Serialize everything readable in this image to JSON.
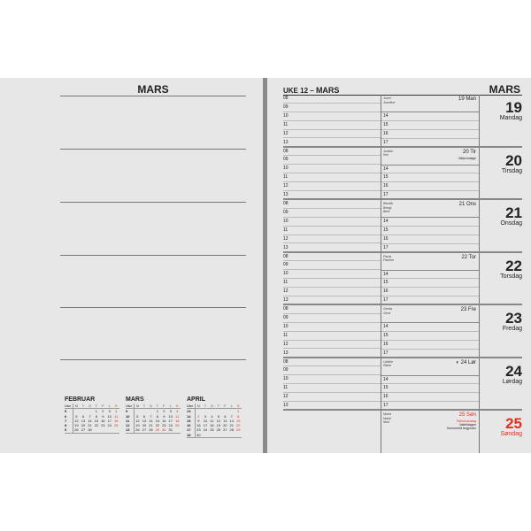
{
  "left_page": {
    "title": "MARS"
  },
  "right_page": {
    "week_label": "UKE 12",
    "dash": "–",
    "month": "MARS",
    "month_right": "MARS"
  },
  "hours_left": [
    "08",
    "09",
    "10",
    "11",
    "12",
    "13"
  ],
  "hours_right": [
    "14",
    "15",
    "16",
    "17"
  ],
  "days": [
    {
      "num": "19",
      "weekday": "Mandag",
      "label": "19 Man",
      "names": [
        "Josef",
        "Josefine"
      ],
      "events": []
    },
    {
      "num": "20",
      "weekday": "Tirsdag",
      "label": "20 Tir",
      "names": [
        "Joakim",
        "Kim"
      ],
      "events": [
        {
          "text": "Vårjevndøgn",
          "red": false
        }
      ]
    },
    {
      "num": "21",
      "weekday": "Onsdag",
      "label": "21 Ons",
      "names": [
        "Bendik",
        "Bengt",
        "Bent"
      ],
      "events": []
    },
    {
      "num": "22",
      "weekday": "Torsdag",
      "label": "22 Tor",
      "names": [
        "Paula",
        "Pauline"
      ],
      "events": []
    },
    {
      "num": "23",
      "weekday": "Fredag",
      "label": "23 Fre",
      "names": [
        "Gerda",
        "Gerd"
      ],
      "events": []
    },
    {
      "num": "24",
      "weekday": "Lørdag",
      "label": "24 Lør",
      "icon": "half-moon-icon",
      "names": [
        "Ulrikke",
        "Rikke"
      ],
      "events": []
    },
    {
      "num": "25",
      "weekday": "Søndag",
      "label": "25 Søn",
      "sunday": true,
      "names": [
        "Maria",
        "Marie",
        "Mari"
      ],
      "events": [
        {
          "text": "Palmesøndag",
          "red": true
        },
        {
          "text": "Vaffeldagen",
          "red": false
        },
        {
          "text": "Sommertid begynner",
          "red": false
        }
      ]
    }
  ],
  "mini_header": [
    "Uke",
    "M",
    "T",
    "O",
    "T",
    "F",
    "L",
    "S"
  ],
  "mini_calendars": [
    {
      "title": "FEBRUAR",
      "rows": [
        [
          "5",
          "",
          "",
          "",
          "1",
          "2",
          "3",
          "4"
        ],
        [
          "6",
          "5",
          "6",
          "7",
          "8",
          "9",
          "10",
          "11"
        ],
        [
          "7",
          "12",
          "13",
          "14",
          "15",
          "16",
          "17",
          "18"
        ],
        [
          "8",
          "19",
          "20",
          "21",
          "22",
          "23",
          "24",
          "25"
        ],
        [
          "9",
          "26",
          "27",
          "28",
          "",
          "",
          "",
          ""
        ]
      ],
      "red": []
    },
    {
      "title": "MARS",
      "rows": [
        [
          "9",
          "",
          "",
          "",
          "1",
          "2",
          "3",
          "4"
        ],
        [
          "10",
          "5",
          "6",
          "7",
          "8",
          "9",
          "10",
          "11"
        ],
        [
          "11",
          "12",
          "13",
          "14",
          "15",
          "16",
          "17",
          "18"
        ],
        [
          "12",
          "19",
          "20",
          "21",
          "22",
          "23",
          "24",
          "25"
        ],
        [
          "13",
          "26",
          "27",
          "28",
          "29",
          "30",
          "31",
          ""
        ]
      ],
      "red": [
        "29",
        "30"
      ]
    },
    {
      "title": "APRIL",
      "rows": [
        [
          "13",
          "",
          "",
          "",
          "",
          "",
          "",
          "1"
        ],
        [
          "14",
          "2",
          "3",
          "4",
          "5",
          "6",
          "7",
          "8"
        ],
        [
          "15",
          "9",
          "10",
          "11",
          "12",
          "13",
          "14",
          "15"
        ],
        [
          "16",
          "16",
          "17",
          "18",
          "19",
          "20",
          "21",
          "22"
        ],
        [
          "17",
          "23",
          "24",
          "25",
          "26",
          "27",
          "28",
          "29"
        ],
        [
          "18",
          "30",
          "",
          "",
          "",
          "",
          "",
          ""
        ]
      ],
      "red": [
        "1",
        "2"
      ]
    }
  ],
  "colors": {
    "accent_red": "#e0301e",
    "page": "#e7e7e7",
    "spine": "#8a8a8a"
  }
}
